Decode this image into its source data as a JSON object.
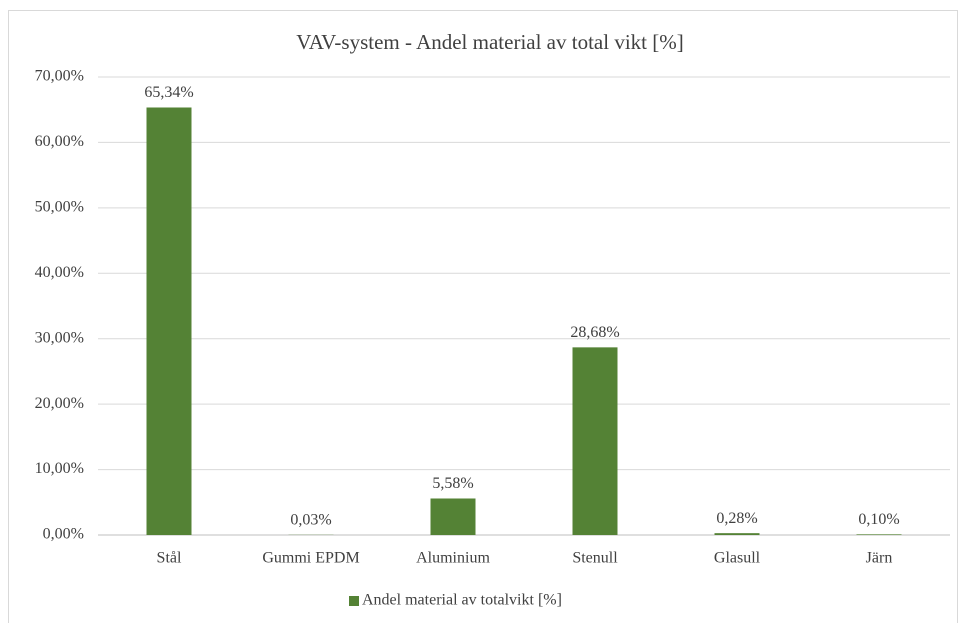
{
  "chart_data": {
    "type": "bar",
    "title": "VAV-system - Andel material av total vikt [%]",
    "categories": [
      "Stål",
      "Gummi EPDM",
      "Aluminium",
      "Stenull",
      "Glasull",
      "Järn"
    ],
    "series": [
      {
        "name": "Andel material av totalvikt [%]",
        "color": "#548235",
        "values": [
          65.34,
          0.03,
          5.58,
          28.68,
          0.28,
          0.1
        ],
        "value_labels": [
          "65,34%",
          "0,03%",
          "5,58%",
          "28,68%",
          "0,28%",
          "0,10%"
        ]
      }
    ],
    "ylim": [
      0,
      70
    ],
    "yticks": [
      {
        "value": 0,
        "label": "0,00%"
      },
      {
        "value": 10,
        "label": "10,00%"
      },
      {
        "value": 20,
        "label": "20,00%"
      },
      {
        "value": 30,
        "label": "30,00%"
      },
      {
        "value": 40,
        "label": "40,00%"
      },
      {
        "value": 50,
        "label": "50,00%"
      },
      {
        "value": 60,
        "label": "60,00%"
      },
      {
        "value": 70,
        "label": "70,00%"
      }
    ],
    "grid": true,
    "legend": "bottom"
  }
}
